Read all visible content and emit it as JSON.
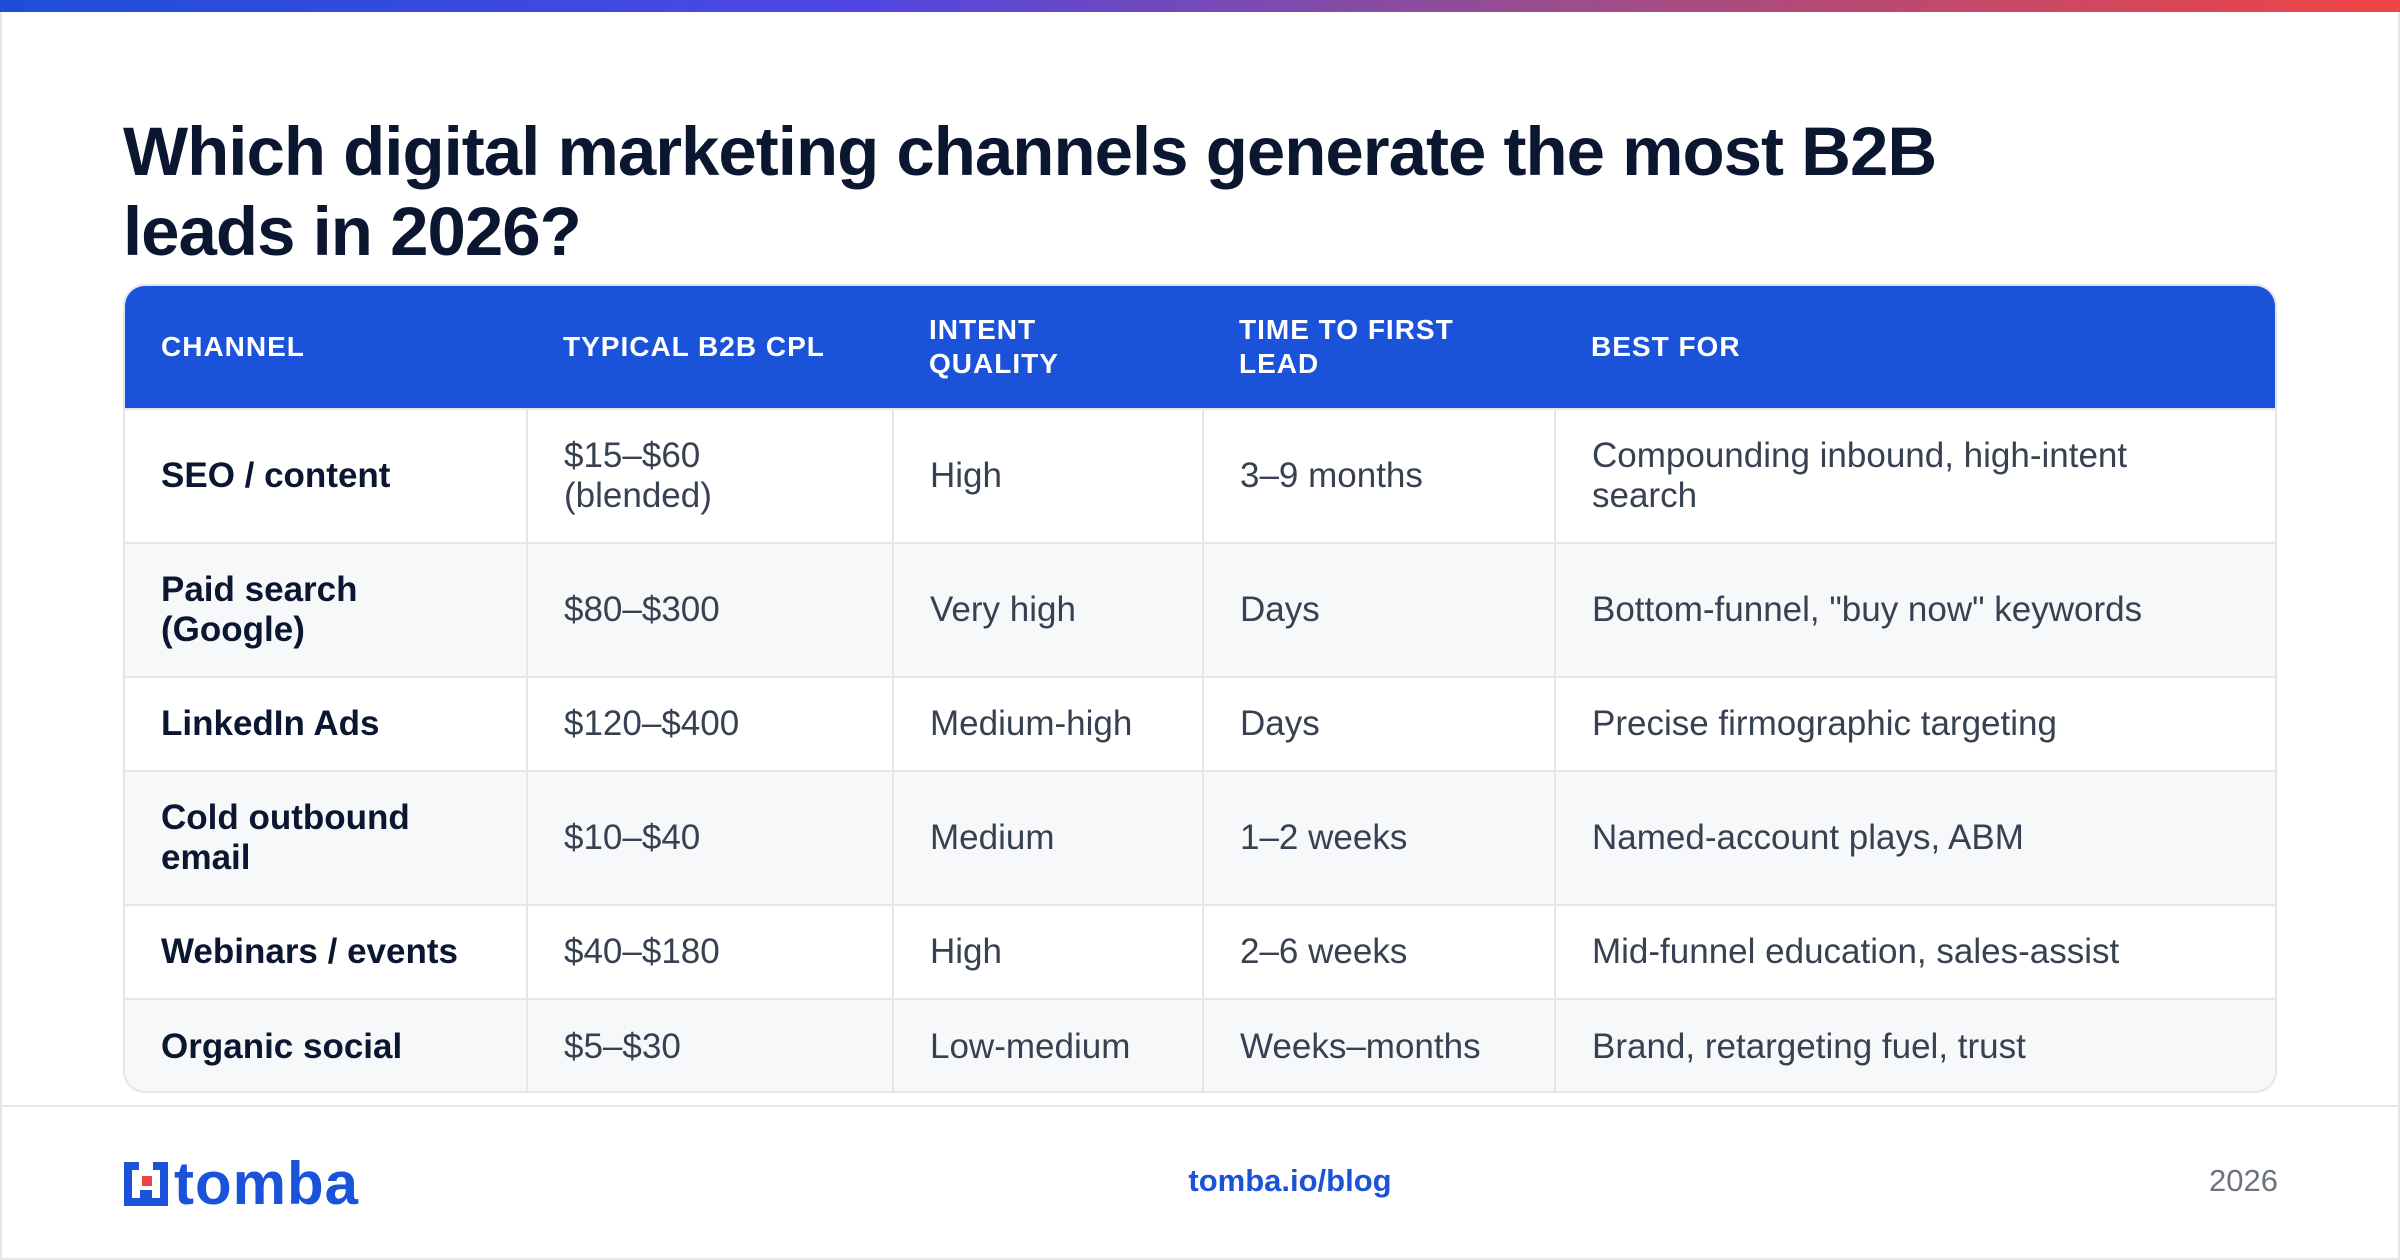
{
  "title": "Which digital marketing channels generate the most B2B leads in 2026?",
  "table": {
    "headers": {
      "channel": "CHANNEL",
      "cpl": "TYPICAL B2B CPL",
      "intent": "INTENT QUALITY",
      "time": "TIME TO FIRST LEAD",
      "best_for": "BEST FOR"
    },
    "rows": [
      {
        "channel": "SEO / content",
        "cpl": "$15–$60 (blended)",
        "intent": "High",
        "time": "3–9 months",
        "best_for": "Compounding inbound, high-intent search"
      },
      {
        "channel": "Paid search (Google)",
        "cpl": "$80–$300",
        "intent": "Very high",
        "time": "Days",
        "best_for": "Bottom-funnel, \"buy now\" keywords"
      },
      {
        "channel": "LinkedIn Ads",
        "cpl": "$120–$400",
        "intent": "Medium-high",
        "time": "Days",
        "best_for": "Precise firmographic targeting"
      },
      {
        "channel": "Cold outbound email",
        "cpl": "$10–$40",
        "intent": "Medium",
        "time": "1–2 weeks",
        "best_for": "Named-account plays, ABM"
      },
      {
        "channel": "Webinars / events",
        "cpl": "$40–$180",
        "intent": "High",
        "time": "2–6 weeks",
        "best_for": "Mid-funnel education, sales-assist"
      },
      {
        "channel": "Organic social",
        "cpl": "$5–$30",
        "intent": "Low-medium",
        "time": "Weeks–months",
        "best_for": "Brand, retargeting fuel, trust"
      }
    ]
  },
  "footer": {
    "logo_text": "tomba",
    "logo_icon": "tomba-logo-icon",
    "link": "tomba.io/blog",
    "year": "2026"
  },
  "colors": {
    "accent": "#1a53d9",
    "title": "#0b1630",
    "body_text": "#374151",
    "muted": "#6b7280",
    "gradient_start": "#1d4ed8",
    "gradient_end": "#ef4444"
  }
}
